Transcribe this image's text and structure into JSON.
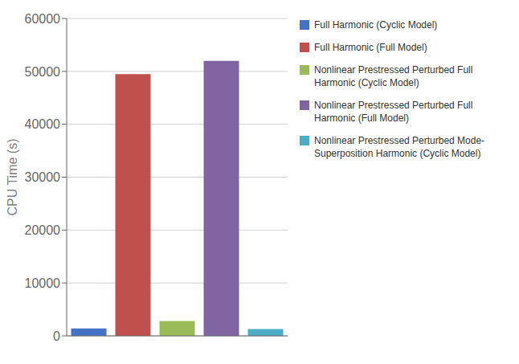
{
  "chart_data": {
    "type": "bar",
    "categories": [
      "Full Harmonic (Cyclic Model)",
      "Full Harmonic (Full Model)",
      "Nonlinear Prestressed Perturbed Full\nHarmonic (Cyclic Model)",
      "Nonlinear Prestressed Perturbed Full\nHarmonic (Full Model)",
      "Nonlinear Prestressed Perturbed Mode-\nSuperposition Harmonic (Cyclic Model)"
    ],
    "values": [
      1400,
      49500,
      2800,
      52000,
      1300
    ],
    "colors": [
      "#4472c4",
      "#c0504d",
      "#9bbb59",
      "#8064a2",
      "#4bacc6"
    ],
    "ylabel": "CPU Time (s)",
    "ylim": [
      0,
      60000
    ],
    "yticks": [
      0,
      10000,
      20000,
      30000,
      40000,
      50000,
      60000
    ],
    "grid": true,
    "legend": "right",
    "tick_labels": "y"
  }
}
